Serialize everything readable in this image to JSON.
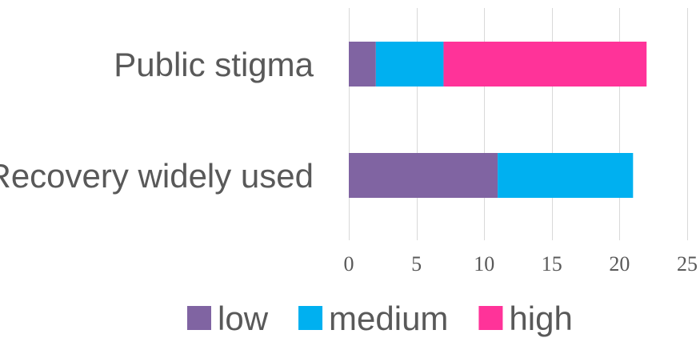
{
  "chart_data": {
    "type": "bar",
    "orientation": "horizontal",
    "stacked": true,
    "categories": [
      "Public stigma",
      "Recovery widely used"
    ],
    "series": [
      {
        "name": "low",
        "values": [
          2,
          11
        ],
        "color": "#8064a2"
      },
      {
        "name": "medium",
        "values": [
          5,
          10
        ],
        "color": "#00b0f0"
      },
      {
        "name": "high",
        "values": [
          15,
          0
        ],
        "color": "#ff3399"
      }
    ],
    "xlim": [
      0,
      25
    ],
    "xticks": [
      0,
      5,
      10,
      15,
      20,
      25
    ],
    "grid": true,
    "legend_position": "bottom"
  }
}
